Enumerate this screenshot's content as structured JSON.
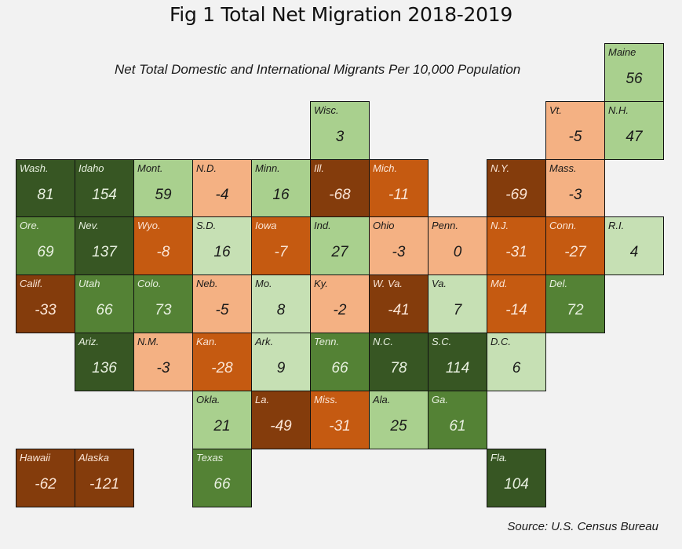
{
  "chart_data": {
    "type": "heatmap",
    "title": "Fig 1 Total Net Migration 2018-2019",
    "subtitle": "Net Total Domestic and International Migrants Per 10,000 Population",
    "source": "Source: U.S. Census Bureau",
    "layout": "tile-grid map of U.S. states",
    "color_scale": [
      {
        "tier": "dark-green",
        "color": "#375623",
        "text": "#e8f0e0"
      },
      {
        "tier": "medium-green",
        "color": "#548235",
        "text": "#e8f0e0"
      },
      {
        "tier": "light-green",
        "color": "#a9d08e",
        "text": "#1a1a1a"
      },
      {
        "tier": "pale-green",
        "color": "#c6e0b4",
        "text": "#1a1a1a"
      },
      {
        "tier": "peach",
        "color": "#f4b183",
        "text": "#1a1a1a"
      },
      {
        "tier": "orange",
        "color": "#c55a11",
        "text": "#fbe5d6"
      },
      {
        "tier": "brown",
        "color": "#843c0c",
        "text": "#fbe5d6"
      }
    ],
    "states": [
      {
        "abbr": "Maine",
        "value": 56,
        "row": 0,
        "col": 10,
        "tier": "light-green"
      },
      {
        "abbr": "Wisc.",
        "value": 3,
        "row": 1,
        "col": 5,
        "tier": "light-green"
      },
      {
        "abbr": "Vt.",
        "value": -5,
        "row": 1,
        "col": 9,
        "tier": "peach"
      },
      {
        "abbr": "N.H.",
        "value": 47,
        "row": 1,
        "col": 10,
        "tier": "light-green"
      },
      {
        "abbr": "Wash.",
        "value": 81,
        "row": 2,
        "col": 0,
        "tier": "dark-green"
      },
      {
        "abbr": "Idaho",
        "value": 154,
        "row": 2,
        "col": 1,
        "tier": "dark-green"
      },
      {
        "abbr": "Mont.",
        "value": 59,
        "row": 2,
        "col": 2,
        "tier": "light-green"
      },
      {
        "abbr": "N.D.",
        "value": -4,
        "row": 2,
        "col": 3,
        "tier": "peach"
      },
      {
        "abbr": "Minn.",
        "value": 16,
        "row": 2,
        "col": 4,
        "tier": "light-green"
      },
      {
        "abbr": "Ill.",
        "value": -68,
        "row": 2,
        "col": 5,
        "tier": "brown"
      },
      {
        "abbr": "Mich.",
        "value": -11,
        "row": 2,
        "col": 6,
        "tier": "orange"
      },
      {
        "abbr": "N.Y.",
        "value": -69,
        "row": 2,
        "col": 8,
        "tier": "brown"
      },
      {
        "abbr": "Mass.",
        "value": -3,
        "row": 2,
        "col": 9,
        "tier": "peach"
      },
      {
        "abbr": "Ore.",
        "value": 69,
        "row": 3,
        "col": 0,
        "tier": "medium-green"
      },
      {
        "abbr": "Nev.",
        "value": 137,
        "row": 3,
        "col": 1,
        "tier": "dark-green"
      },
      {
        "abbr": "Wyo.",
        "value": -8,
        "row": 3,
        "col": 2,
        "tier": "orange"
      },
      {
        "abbr": "S.D.",
        "value": 16,
        "row": 3,
        "col": 3,
        "tier": "pale-green"
      },
      {
        "abbr": "Iowa",
        "value": -7,
        "row": 3,
        "col": 4,
        "tier": "orange"
      },
      {
        "abbr": "Ind.",
        "value": 27,
        "row": 3,
        "col": 5,
        "tier": "light-green"
      },
      {
        "abbr": "Ohio",
        "value": -3,
        "row": 3,
        "col": 6,
        "tier": "peach"
      },
      {
        "abbr": "Penn.",
        "value": 0,
        "row": 3,
        "col": 7,
        "tier": "peach"
      },
      {
        "abbr": "N.J.",
        "value": -31,
        "row": 3,
        "col": 8,
        "tier": "orange"
      },
      {
        "abbr": "Conn.",
        "value": -27,
        "row": 3,
        "col": 9,
        "tier": "orange"
      },
      {
        "abbr": "R.I.",
        "value": 4,
        "row": 3,
        "col": 10,
        "tier": "pale-green"
      },
      {
        "abbr": "Calif.",
        "value": -33,
        "row": 4,
        "col": 0,
        "tier": "brown"
      },
      {
        "abbr": "Utah",
        "value": 66,
        "row": 4,
        "col": 1,
        "tier": "medium-green"
      },
      {
        "abbr": "Colo.",
        "value": 73,
        "row": 4,
        "col": 2,
        "tier": "medium-green"
      },
      {
        "abbr": "Neb.",
        "value": -5,
        "row": 4,
        "col": 3,
        "tier": "peach"
      },
      {
        "abbr": "Mo.",
        "value": 8,
        "row": 4,
        "col": 4,
        "tier": "pale-green"
      },
      {
        "abbr": "Ky.",
        "value": -2,
        "row": 4,
        "col": 5,
        "tier": "peach"
      },
      {
        "abbr": "W. Va.",
        "value": -41,
        "row": 4,
        "col": 6,
        "tier": "brown"
      },
      {
        "abbr": "Va.",
        "value": 7,
        "row": 4,
        "col": 7,
        "tier": "pale-green"
      },
      {
        "abbr": "Md.",
        "value": -14,
        "row": 4,
        "col": 8,
        "tier": "orange"
      },
      {
        "abbr": "Del.",
        "value": 72,
        "row": 4,
        "col": 9,
        "tier": "medium-green"
      },
      {
        "abbr": "Ariz.",
        "value": 136,
        "row": 5,
        "col": 1,
        "tier": "dark-green"
      },
      {
        "abbr": "N.M.",
        "value": -3,
        "row": 5,
        "col": 2,
        "tier": "peach"
      },
      {
        "abbr": "Kan.",
        "value": -28,
        "row": 5,
        "col": 3,
        "tier": "orange"
      },
      {
        "abbr": "Ark.",
        "value": 9,
        "row": 5,
        "col": 4,
        "tier": "pale-green"
      },
      {
        "abbr": "Tenn.",
        "value": 66,
        "row": 5,
        "col": 5,
        "tier": "medium-green"
      },
      {
        "abbr": "N.C.",
        "value": 78,
        "row": 5,
        "col": 6,
        "tier": "dark-green"
      },
      {
        "abbr": "S.C.",
        "value": 114,
        "row": 5,
        "col": 7,
        "tier": "dark-green"
      },
      {
        "abbr": "D.C.",
        "value": 6,
        "row": 5,
        "col": 8,
        "tier": "pale-green"
      },
      {
        "abbr": "Okla.",
        "value": 21,
        "row": 6,
        "col": 3,
        "tier": "light-green"
      },
      {
        "abbr": "La.",
        "value": -49,
        "row": 6,
        "col": 4,
        "tier": "brown"
      },
      {
        "abbr": "Miss.",
        "value": -31,
        "row": 6,
        "col": 5,
        "tier": "orange"
      },
      {
        "abbr": "Ala.",
        "value": 25,
        "row": 6,
        "col": 6,
        "tier": "light-green"
      },
      {
        "abbr": "Ga.",
        "value": 61,
        "row": 6,
        "col": 7,
        "tier": "medium-green"
      },
      {
        "abbr": "Hawaii",
        "value": -62,
        "row": 7,
        "col": 0,
        "tier": "brown"
      },
      {
        "abbr": "Alaska",
        "value": -121,
        "row": 7,
        "col": 1,
        "tier": "brown"
      },
      {
        "abbr": "Texas",
        "value": 66,
        "row": 7,
        "col": 3,
        "tier": "medium-green"
      },
      {
        "abbr": "Fla.",
        "value": 104,
        "row": 7,
        "col": 8,
        "tier": "dark-green"
      }
    ]
  }
}
